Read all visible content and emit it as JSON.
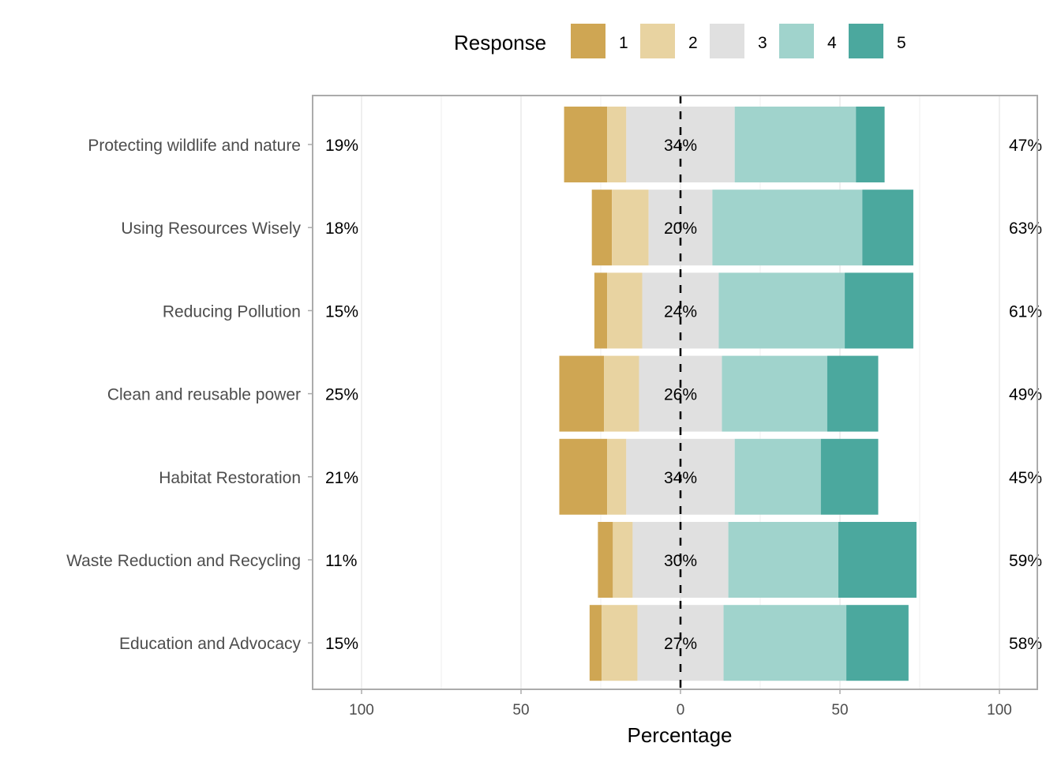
{
  "chart_data": {
    "type": "bar",
    "subtype": "diverging-stacked-likert",
    "title": "",
    "xlabel": "Percentage",
    "ylabel": "",
    "xlim": [
      -100,
      100
    ],
    "x_ticks": [
      -100,
      -50,
      0,
      50,
      100
    ],
    "x_tick_labels": [
      "100",
      "50",
      "0",
      "50",
      "100"
    ],
    "legend": {
      "title": "Response",
      "position": "top",
      "entries": [
        "1",
        "2",
        "3",
        "4",
        "5"
      ]
    },
    "colors": [
      "#CFA653",
      "#E8D3A1",
      "#E0E0E0",
      "#A0D3CC",
      "#4BA89E"
    ],
    "grid": true,
    "categories": [
      "Protecting wildlife and nature",
      "Using Resources Wisely",
      "Reducing Pollution",
      "Clean and reusable power",
      "Habitat Restoration",
      "Waste Reduction and Recycling",
      "Education and Advocacy"
    ],
    "series": [
      {
        "name": "1",
        "values": [
          13.5,
          6.3,
          4.0,
          14.0,
          15.0,
          4.7,
          3.8
        ]
      },
      {
        "name": "2",
        "values": [
          6.0,
          11.5,
          11.0,
          11.0,
          6.0,
          6.2,
          11.2
        ]
      },
      {
        "name": "3",
        "values": [
          34,
          20,
          24,
          26,
          34,
          30,
          27
        ]
      },
      {
        "name": "4",
        "values": [
          38.0,
          47.0,
          39.5,
          33.0,
          27.0,
          34.5,
          38.5
        ]
      },
      {
        "name": "5",
        "values": [
          9.0,
          16.0,
          21.5,
          16.0,
          18.0,
          24.5,
          19.5
        ]
      }
    ],
    "left_labels": [
      "19%",
      "18%",
      "15%",
      "25%",
      "21%",
      "11%",
      "15%"
    ],
    "center_labels": [
      "34%",
      "20%",
      "24%",
      "26%",
      "34%",
      "30%",
      "27%"
    ],
    "right_labels": [
      "47%",
      "63%",
      "61%",
      "49%",
      "45%",
      "59%",
      "58%"
    ]
  }
}
